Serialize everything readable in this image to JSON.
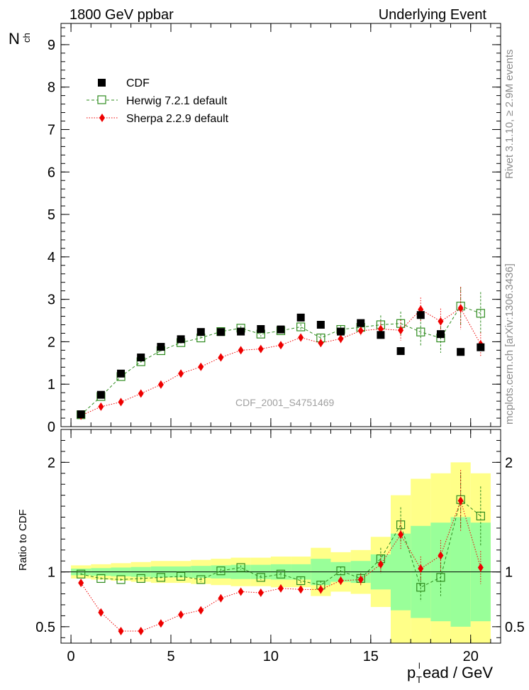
{
  "header": {
    "left": "1800 GeV ppbar",
    "right": "Underlying Event"
  },
  "side_text": {
    "top": "Rivet 3.1.10, ≥ 2.9M events",
    "bottom": "mcplots.cern.ch [arXiv:1306.3436]"
  },
  "watermark": "CDF_2001_S4751469",
  "colors": {
    "cdf": "#000000",
    "herwig": "#2e8b1e",
    "sherpa": "#ee0000",
    "band_inner": "#99ff99",
    "band_outer": "#ffff88"
  },
  "chart_data": [
    {
      "type": "scatter",
      "panel": "main",
      "ylabel_main": "N",
      "ylabel_sub": "ch",
      "xlim": [
        -0.5,
        21.5
      ],
      "ylim": [
        0,
        9.5
      ],
      "yticks": [
        0,
        1,
        2,
        3,
        4,
        5,
        6,
        7,
        8,
        9
      ],
      "legend_position": "top-left",
      "x": [
        0.5,
        1.5,
        2.5,
        3.5,
        4.5,
        5.5,
        6.5,
        7.5,
        8.5,
        9.5,
        10.5,
        11.5,
        12.5,
        13.5,
        14.5,
        15.5,
        16.5,
        17.5,
        18.5,
        19.5,
        20.5
      ],
      "series": [
        {
          "name": "CDF",
          "style": "square-filled",
          "values": [
            0.29,
            0.75,
            1.25,
            1.63,
            1.88,
            2.06,
            2.23,
            2.23,
            2.24,
            2.3,
            2.29,
            2.57,
            2.4,
            2.24,
            2.44,
            2.16,
            1.78,
            2.63,
            2.18,
            1.76,
            1.87
          ]
        },
        {
          "name": "Herwig 7.2.1 default",
          "style": "square-open-dashed",
          "values": [
            0.28,
            0.71,
            1.18,
            1.53,
            1.79,
            1.98,
            2.09,
            2.24,
            2.32,
            2.18,
            2.26,
            2.35,
            2.09,
            2.29,
            2.34,
            2.4,
            2.43,
            2.23,
            2.09,
            2.84,
            2.67
          ],
          "errors": [
            0.02,
            0.02,
            0.03,
            0.03,
            0.03,
            0.03,
            0.04,
            0.05,
            0.05,
            0.06,
            0.06,
            0.07,
            0.08,
            0.09,
            0.12,
            0.22,
            0.28,
            0.32,
            0.35,
            0.45,
            0.5
          ]
        },
        {
          "name": "Sherpa 2.2.9 default",
          "style": "diamond-dotted",
          "values": [
            0.26,
            0.47,
            0.58,
            0.78,
            0.99,
            1.25,
            1.41,
            1.63,
            1.8,
            1.83,
            1.92,
            2.1,
            1.97,
            2.07,
            2.26,
            2.3,
            2.27,
            2.76,
            2.48,
            2.79,
            1.94
          ],
          "errors": [
            0.02,
            0.02,
            0.02,
            0.03,
            0.03,
            0.03,
            0.04,
            0.04,
            0.05,
            0.06,
            0.07,
            0.08,
            0.09,
            0.1,
            0.12,
            0.18,
            0.24,
            0.28,
            0.3,
            0.5,
            0.28
          ]
        }
      ]
    },
    {
      "type": "scatter",
      "panel": "ratio",
      "ylabel": "Ratio to CDF",
      "xlabel_main": "p",
      "xlabel_sub": "T",
      "xlabel_sup": "l",
      "xlabel_rest": "ead / GeV",
      "xlim": [
        -0.5,
        21.5
      ],
      "ylim": [
        0.35,
        2.3
      ],
      "yticks": [
        0.5,
        1,
        2
      ],
      "xticks": [
        0,
        5,
        10,
        15,
        20
      ],
      "x": [
        0.5,
        1.5,
        2.5,
        3.5,
        4.5,
        5.5,
        6.5,
        7.5,
        8.5,
        9.5,
        10.5,
        11.5,
        12.5,
        13.5,
        14.5,
        15.5,
        16.5,
        17.5,
        18.5,
        19.5,
        20.5
      ],
      "band_inner": [
        0.03,
        0.035,
        0.04,
        0.045,
        0.05,
        0.05,
        0.055,
        0.06,
        0.065,
        0.065,
        0.07,
        0.07,
        0.12,
        0.09,
        0.1,
        0.16,
        0.35,
        0.42,
        0.45,
        0.5,
        0.45
      ],
      "band_outer": [
        0.06,
        0.07,
        0.08,
        0.09,
        0.1,
        0.1,
        0.11,
        0.12,
        0.13,
        0.13,
        0.14,
        0.14,
        0.22,
        0.18,
        0.2,
        0.32,
        0.7,
        0.85,
        0.9,
        1.0,
        0.9
      ],
      "series": [
        {
          "name": "Herwig 7.2.1 default",
          "style": "square-open-dashed",
          "values": [
            0.98,
            0.94,
            0.93,
            0.94,
            0.95,
            0.96,
            0.93,
            1.01,
            1.04,
            0.95,
            0.98,
            0.92,
            0.88,
            1.01,
            0.94,
            1.12,
            1.43,
            0.86,
            0.95,
            1.66,
            1.51
          ],
          "errors": [
            0.01,
            0.01,
            0.01,
            0.01,
            0.01,
            0.01,
            0.02,
            0.02,
            0.02,
            0.02,
            0.02,
            0.03,
            0.04,
            0.04,
            0.05,
            0.1,
            0.16,
            0.13,
            0.17,
            0.25,
            0.27
          ]
        },
        {
          "name": "Sherpa 2.2.9 default",
          "style": "diamond-dotted",
          "values": [
            0.9,
            0.63,
            0.46,
            0.46,
            0.53,
            0.61,
            0.65,
            0.76,
            0.82,
            0.81,
            0.85,
            0.84,
            0.84,
            0.92,
            0.93,
            1.07,
            1.34,
            1.03,
            1.15,
            1.65,
            1.04
          ],
          "errors": [
            0.01,
            0.01,
            0.01,
            0.01,
            0.01,
            0.01,
            0.02,
            0.02,
            0.02,
            0.03,
            0.03,
            0.03,
            0.04,
            0.04,
            0.05,
            0.08,
            0.13,
            0.11,
            0.14,
            0.28,
            0.15
          ]
        }
      ]
    }
  ]
}
